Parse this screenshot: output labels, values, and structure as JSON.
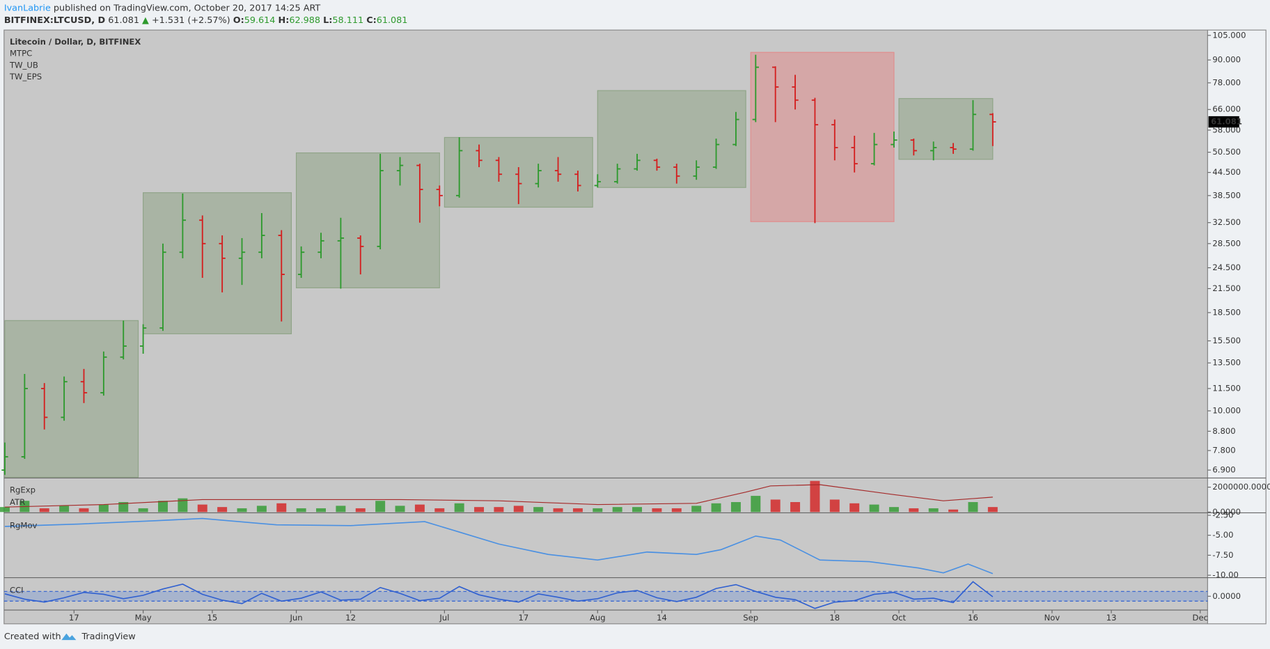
{
  "header": {
    "author": "IvanLabrie",
    "published": "published on TradingView.com, October 20, 2017 14:25 ART"
  },
  "quote": {
    "symbol": "BITFINEX:LTCUSD, D",
    "price": 61.081,
    "arrow": "▲",
    "change": "+1.531 (+2.57%)",
    "o_label": "O:",
    "open": 59.614,
    "h_label": "H:",
    "high": 62.988,
    "l_label": "L:",
    "low": 58.111,
    "c_label": "C:",
    "close": 61.081
  },
  "footer": {
    "created": "Created with",
    "brand": "TradingView"
  },
  "x_axis": {
    "xlim": [
      0,
      243.5
    ],
    "xticks": [
      {
        "value": 14,
        "label": "17"
      },
      {
        "value": 28,
        "label": "May"
      },
      {
        "value": 42,
        "label": "15"
      },
      {
        "value": 59,
        "label": "Jun"
      },
      {
        "value": 70,
        "label": "12"
      },
      {
        "value": 89,
        "label": "Jul"
      },
      {
        "value": 105,
        "label": "17"
      },
      {
        "value": 120,
        "label": "Aug"
      },
      {
        "value": 133,
        "label": "14"
      },
      {
        "value": 151,
        "label": "Sep"
      },
      {
        "value": 168,
        "label": "18"
      },
      {
        "value": 181,
        "label": "Oct"
      },
      {
        "value": 196,
        "label": "16"
      },
      {
        "value": 212,
        "label": "Nov"
      },
      {
        "value": 224,
        "label": "13"
      },
      {
        "value": 242,
        "label": "Dec"
      }
    ]
  },
  "chart_data": [
    {
      "type": "ohlc",
      "title": "Litecoin / Dollar, D, BITFINEX",
      "indicators": [
        "MTPC",
        "TW_UB",
        "TW_EPS"
      ],
      "log_scale": true,
      "grid": false,
      "up_color": "#2e9a2e",
      "down_color": "#d42020",
      "ylim": [
        6.6,
        108
      ],
      "yticks": [
        {
          "value": 105,
          "label": "105.000"
        },
        {
          "value": 90,
          "label": "90.000"
        },
        {
          "value": 78,
          "label": "78.000"
        },
        {
          "value": 66,
          "label": "66.000"
        },
        {
          "value": 58,
          "label": "58.000"
        },
        {
          "value": 50.5,
          "label": "50.500"
        },
        {
          "value": 44.5,
          "label": "44.500"
        },
        {
          "value": 38.5,
          "label": "38.500"
        },
        {
          "value": 32.5,
          "label": "32.500"
        },
        {
          "value": 28.5,
          "label": "28.500"
        },
        {
          "value": 24.5,
          "label": "24.500"
        },
        {
          "value": 21.5,
          "label": "21.500"
        },
        {
          "value": 18.5,
          "label": "18.500"
        },
        {
          "value": 15.5,
          "label": "15.500"
        },
        {
          "value": 13.5,
          "label": "13.500"
        },
        {
          "value": 11.5,
          "label": "11.500"
        },
        {
          "value": 10,
          "label": "10.000"
        },
        {
          "value": 8.8,
          "label": "8.800"
        },
        {
          "value": 7.8,
          "label": "7.800"
        },
        {
          "value": 6.9,
          "label": "6.900"
        }
      ],
      "x": [
        0,
        4,
        8,
        12,
        16,
        20,
        24,
        28,
        32,
        36,
        40,
        44,
        48,
        52,
        56,
        60,
        64,
        68,
        72,
        76,
        80,
        84,
        88,
        92,
        96,
        100,
        104,
        108,
        112,
        116,
        120,
        124,
        128,
        132,
        136,
        140,
        144,
        148,
        152,
        156,
        160,
        164,
        168,
        172,
        176,
        180,
        184,
        188,
        192,
        196,
        200
      ],
      "open": [
        6.9,
        7.5,
        11.5,
        9.6,
        12.0,
        11.2,
        14.0,
        15.0,
        16.8,
        27,
        33,
        28.5,
        26,
        27,
        30,
        23.5,
        27,
        29,
        29.5,
        28,
        45,
        46.5,
        40,
        38.5,
        51,
        48,
        44,
        41.5,
        45,
        44,
        41,
        42,
        45.5,
        48,
        46,
        43.5,
        46,
        53,
        62,
        86,
        76,
        70,
        60,
        52,
        47,
        53,
        54.5,
        51,
        52,
        51.5,
        64
      ],
      "high": [
        8.2,
        12.6,
        11.9,
        12.4,
        13.0,
        14.5,
        17.6,
        17.2,
        28.5,
        39,
        34,
        30,
        29.5,
        34.5,
        31,
        28,
        30.5,
        33.5,
        30,
        50,
        49,
        47,
        41,
        55.5,
        53,
        49,
        46,
        47,
        49,
        45,
        44,
        47,
        50,
        48.5,
        47,
        48,
        55,
        65,
        93,
        86.5,
        82,
        71,
        62,
        56,
        57,
        57.5,
        55,
        54,
        53.5,
        70,
        64.5
      ],
      "low": [
        6.7,
        7.4,
        8.9,
        9.4,
        10.5,
        11.0,
        13.8,
        14.3,
        16.5,
        26,
        23,
        21,
        22,
        26,
        17.5,
        23,
        26,
        21.5,
        23.5,
        27.5,
        41,
        32.5,
        36,
        38,
        46,
        42,
        36.5,
        40.5,
        42,
        39.5,
        40.5,
        41.5,
        45,
        45,
        41.5,
        42.5,
        45.5,
        52.5,
        61,
        61,
        66,
        32.4,
        48,
        44.5,
        46.5,
        52,
        49.5,
        48,
        50,
        51,
        52.5
      ],
      "close": [
        7.5,
        11.5,
        9.6,
        12.0,
        11.2,
        14.0,
        15.0,
        16.8,
        27,
        33,
        28.5,
        26,
        27,
        30,
        23.5,
        27,
        29,
        29.5,
        28,
        45,
        46.5,
        40,
        38.5,
        51,
        48,
        44,
        41.5,
        45,
        44,
        41,
        42,
        45.5,
        48,
        46,
        43.5,
        46,
        53,
        62,
        86,
        76,
        70,
        60,
        52,
        47,
        53,
        54.5,
        51,
        52,
        51.5,
        64,
        61.081
      ],
      "zones": [
        {
          "x": [
            0,
            27
          ],
          "y": [
            6.6,
            17.6
          ],
          "color": "#8fa487"
        },
        {
          "x": [
            28,
            58
          ],
          "y": [
            16.2,
            39.2
          ],
          "color": "#8fa487"
        },
        {
          "x": [
            59,
            88
          ],
          "y": [
            21.6,
            50.3
          ],
          "color": "#8fa487"
        },
        {
          "x": [
            89,
            119
          ],
          "y": [
            35.8,
            55.4
          ],
          "color": "#8fa487"
        },
        {
          "x": [
            120,
            150
          ],
          "y": [
            40.5,
            74.3
          ],
          "color": "#8fa487"
        },
        {
          "x": [
            151,
            180
          ],
          "y": [
            32.7,
            94.4
          ],
          "color": "#e08c8c"
        },
        {
          "x": [
            181,
            200
          ],
          "y": [
            48.3,
            70.7
          ],
          "color": "#8fa487"
        }
      ],
      "last_price": 61.081
    },
    {
      "type": "volume",
      "ylim": [
        0,
        2670000
      ],
      "yticks": [
        {
          "value": 2000000,
          "label": "2000000.0000"
        },
        {
          "value": 0,
          "label": "0.0000"
        }
      ],
      "series": [
        {
          "name": "RgExp",
          "x": [
            0,
            4,
            8,
            12,
            16,
            20,
            24,
            28,
            32,
            36,
            40,
            44,
            48,
            52,
            56,
            60,
            64,
            68,
            72,
            76,
            80,
            84,
            88,
            92,
            96,
            100,
            104,
            108,
            112,
            116,
            120,
            124,
            128,
            132,
            136,
            140,
            144,
            148,
            152,
            156,
            160,
            164,
            168,
            172,
            176,
            180,
            184,
            188,
            192,
            196,
            200
          ],
          "values": [
            400000,
            900000,
            300000,
            500000,
            300000,
            600000,
            800000,
            300000,
            900000,
            1100000,
            600000,
            400000,
            300000,
            500000,
            700000,
            300000,
            300000,
            500000,
            300000,
            900000,
            500000,
            600000,
            300000,
            700000,
            400000,
            400000,
            500000,
            400000,
            300000,
            300000,
            300000,
            400000,
            400000,
            300000,
            300000,
            500000,
            700000,
            800000,
            1300000,
            1000000,
            800000,
            2500000,
            1000000,
            700000,
            600000,
            400000,
            300000,
            300000,
            200000,
            800000,
            400000
          ]
        },
        {
          "name": "ATR",
          "color": "#a52a2a",
          "x": [
            0,
            20,
            40,
            60,
            80,
            100,
            120,
            140,
            150,
            155,
            165,
            180,
            190,
            200
          ],
          "values": [
            400000,
            600000,
            1000000,
            1000000,
            1000000,
            900000,
            600000,
            700000,
            1600000,
            2100000,
            2200000,
            1400000,
            900000,
            1200000
          ]
        }
      ]
    },
    {
      "type": "line",
      "ylim": [
        -10.2,
        -2.3
      ],
      "yticks": [
        {
          "value": -2.5,
          "label": "-2.50"
        },
        {
          "value": -5,
          "label": "-5.00"
        },
        {
          "value": -7.5,
          "label": "-7.50"
        },
        {
          "value": -10,
          "label": "-10.00"
        }
      ],
      "series": [
        {
          "name": "RgMov",
          "color": "#4a90e2",
          "x": [
            0,
            15,
            30,
            40,
            55,
            70,
            85,
            92,
            100,
            110,
            120,
            130,
            140,
            145,
            152,
            157,
            165,
            175,
            185,
            190,
            195,
            200
          ],
          "values": [
            -3.9,
            -3.6,
            -3.2,
            -2.9,
            -3.7,
            -3.8,
            -3.3,
            -4.6,
            -6.1,
            -7.4,
            -8.1,
            -7.1,
            -7.4,
            -6.8,
            -5.1,
            -5.6,
            -8.1,
            -8.3,
            -9.1,
            -9.7,
            -8.6,
            -9.8
          ]
        }
      ]
    },
    {
      "type": "line",
      "ylim": [
        -267,
        367
      ],
      "yticks": [
        {
          "value": 0,
          "label": "0.0000"
        }
      ],
      "bands": [
        -100,
        100
      ],
      "series": [
        {
          "name": "CCI",
          "color": "#3060d0",
          "x": [
            0,
            4,
            8,
            12,
            16,
            20,
            24,
            28,
            32,
            36,
            40,
            44,
            48,
            52,
            56,
            60,
            64,
            68,
            72,
            76,
            80,
            84,
            88,
            92,
            96,
            100,
            104,
            108,
            112,
            116,
            120,
            124,
            128,
            132,
            136,
            140,
            144,
            148,
            152,
            156,
            160,
            164,
            168,
            172,
            176,
            180,
            184,
            188,
            192,
            196,
            200
          ],
          "values": [
            50,
            -60,
            -120,
            -30,
            80,
            40,
            -50,
            20,
            150,
            250,
            40,
            -80,
            -150,
            60,
            -100,
            -40,
            90,
            -80,
            -60,
            180,
            60,
            -90,
            -40,
            200,
            30,
            -60,
            -120,
            50,
            -20,
            -100,
            -50,
            70,
            120,
            -30,
            -110,
            -20,
            160,
            240,
            100,
            -20,
            -70,
            -250,
            -120,
            -90,
            40,
            80,
            -60,
            -40,
            -130,
            300,
            -10
          ]
        }
      ]
    }
  ]
}
